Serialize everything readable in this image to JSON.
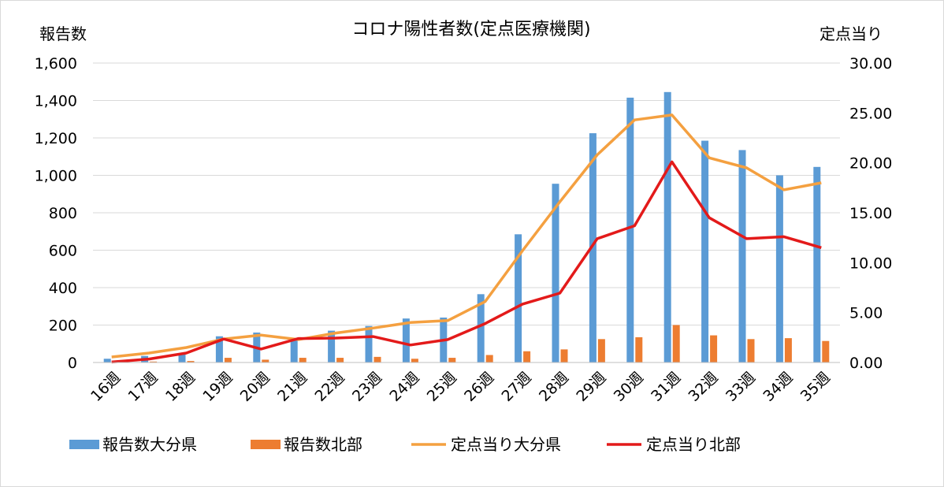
{
  "chart_data": {
    "type": "bar",
    "title": "コロナ陽性者数(定点医療機関)",
    "ylabel_left": "報告数",
    "ylabel_right": "定点当り",
    "categories": [
      "16週",
      "17週",
      "18週",
      "19週",
      "20週",
      "21週",
      "22週",
      "23週",
      "24週",
      "25週",
      "26週",
      "27週",
      "28週",
      "29週",
      "30週",
      "31週",
      "32週",
      "33週",
      "34週",
      "35週"
    ],
    "y_left": {
      "min": 0,
      "max": 1600,
      "step": 200,
      "tick_labels": [
        "0",
        "200",
        "400",
        "600",
        "800",
        "1,000",
        "1,200",
        "1,400",
        "1,600"
      ]
    },
    "y_right": {
      "min": 0,
      "max": 30,
      "step": 5,
      "tick_labels": [
        "0.00",
        "5.00",
        "10.00",
        "15.00",
        "20.00",
        "25.00",
        "30.00"
      ]
    },
    "grid": true,
    "legend_position": "bottom",
    "series": [
      {
        "name": "報告数大分県",
        "kind": "bar",
        "axis": "left",
        "color": "#5b9bd5",
        "values": [
          20,
          35,
          50,
          140,
          160,
          125,
          170,
          195,
          235,
          240,
          365,
          685,
          955,
          1225,
          1415,
          1445,
          1185,
          1135,
          1000,
          1045
        ]
      },
      {
        "name": "報告数北部",
        "kind": "bar",
        "axis": "left",
        "color": "#ed7d31",
        "values": [
          3,
          5,
          8,
          25,
          15,
          25,
          25,
          30,
          20,
          25,
          40,
          60,
          70,
          125,
          135,
          200,
          145,
          125,
          130,
          115
        ]
      },
      {
        "name": "定点当り大分県",
        "kind": "line",
        "axis": "right",
        "color": "#f4a040",
        "values": [
          0.55,
          0.95,
          1.5,
          2.35,
          2.75,
          2.3,
          2.95,
          3.45,
          4.0,
          4.2,
          6.1,
          11.2,
          16.1,
          20.8,
          24.3,
          24.8,
          20.5,
          19.5,
          17.3,
          18.0
        ]
      },
      {
        "name": "定点当り北部",
        "kind": "line",
        "axis": "right",
        "color": "#e31a1a",
        "values": [
          0.05,
          0.35,
          0.95,
          2.35,
          1.35,
          2.4,
          2.45,
          2.6,
          1.75,
          2.3,
          3.9,
          5.85,
          6.95,
          12.4,
          13.7,
          20.1,
          14.5,
          12.4,
          12.6,
          11.5
        ]
      }
    ]
  }
}
